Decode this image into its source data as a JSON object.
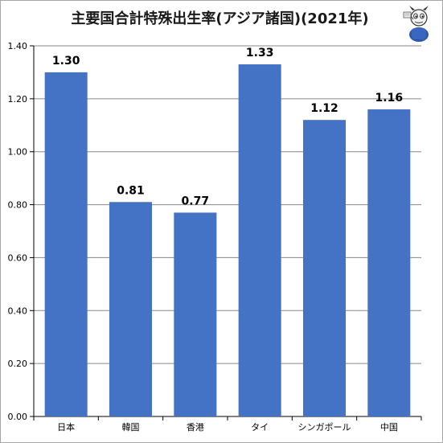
{
  "chart_data": {
    "type": "bar",
    "title": "主要国合計特殊出生率(アジア諸国)(2021年)",
    "categories": [
      "日本",
      "韓国",
      "香港",
      "タイ",
      "シンガポール",
      "中国"
    ],
    "values": [
      1.3,
      0.81,
      0.77,
      1.33,
      1.12,
      1.16
    ],
    "data_labels": [
      "1.30",
      "0.81",
      "0.77",
      "1.33",
      "1.12",
      "1.16"
    ],
    "yticks": [
      "0.00",
      "0.20",
      "0.40",
      "0.60",
      "0.80",
      "1.00",
      "1.20",
      "1.40"
    ],
    "ylim": [
      0,
      1.4
    ],
    "xlabel": "",
    "ylabel": "",
    "grid": true,
    "bar_color": "#4472c4",
    "grid_color": "#878787"
  },
  "mascot_icon": "reporter-mascot-icon"
}
